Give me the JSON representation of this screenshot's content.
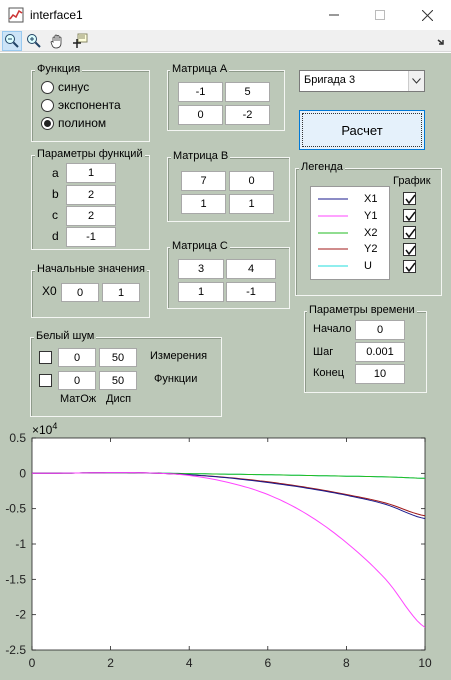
{
  "window": {
    "title": "interface1"
  },
  "toolbar": {
    "icons": [
      "zoom-out-icon",
      "zoom-in-icon",
      "pan-icon",
      "data-cursor-icon"
    ]
  },
  "function_panel": {
    "title": "Функция",
    "options": [
      {
        "label": "синус",
        "selected": false
      },
      {
        "label": "экспонента",
        "selected": false
      },
      {
        "label": "полином",
        "selected": true
      }
    ]
  },
  "params_panel": {
    "title": "Параметры функций",
    "rows": [
      {
        "label": "a",
        "value": "1"
      },
      {
        "label": "b",
        "value": "2"
      },
      {
        "label": "c",
        "value": "2"
      },
      {
        "label": "d",
        "value": "-1"
      }
    ]
  },
  "initial_panel": {
    "title": "Начальные значения",
    "label": "X0",
    "values": [
      "0",
      "1"
    ]
  },
  "matrix_a": {
    "title": "Матрица А",
    "values": [
      "-1",
      "5",
      "0",
      "-2"
    ]
  },
  "matrix_b": {
    "title": "Матрица B",
    "values": [
      "7",
      "0",
      "1",
      "1"
    ]
  },
  "matrix_c": {
    "title": "Матрица C",
    "values": [
      "3",
      "4",
      "1",
      "-1"
    ]
  },
  "brigade": {
    "selected": "Бригада 3"
  },
  "calc_button": {
    "label": "Расчет"
  },
  "legend_panel": {
    "title": "Легенда",
    "plot_header": "График",
    "items": [
      {
        "name": "X1",
        "color": "#1a1a8c",
        "checked": true
      },
      {
        "name": "Y1",
        "color": "#ff44ff",
        "checked": true
      },
      {
        "name": "X2",
        "color": "#22bb22",
        "checked": true
      },
      {
        "name": "Y2",
        "color": "#a01818",
        "checked": true
      },
      {
        "name": "U",
        "color": "#22dddd",
        "checked": true
      }
    ]
  },
  "noise_panel": {
    "title": "Белый шум",
    "rows": [
      {
        "checked": false,
        "mean": "0",
        "disp": "50",
        "label": "Измерения"
      },
      {
        "checked": false,
        "mean": "0",
        "disp": "50",
        "label": "Функции"
      }
    ],
    "mean_label": "МатОж",
    "disp_label": "Дисп"
  },
  "time_panel": {
    "title": "Параметры времени",
    "rows": [
      {
        "label": "Начало",
        "value": "0"
      },
      {
        "label": "Шаг",
        "value": "0.001"
      },
      {
        "label": "Конец",
        "value": "10"
      }
    ]
  },
  "chart_data": {
    "type": "line",
    "exponent_label": "×10",
    "exponent_power": "4",
    "xlim": [
      0,
      10
    ],
    "ylim": [
      -2.5,
      0.5
    ],
    "x_ticks": [
      "0",
      "2",
      "4",
      "6",
      "8",
      "10"
    ],
    "y_ticks": [
      "0.5",
      "0",
      "-0.5",
      "-1",
      "-1.5",
      "-2",
      "-2.5"
    ],
    "x": [
      0,
      1,
      2,
      3,
      4,
      5,
      6,
      7,
      8,
      9,
      10
    ],
    "series": [
      {
        "color": "#22dddd",
        "values": [
          0,
          0.004,
          0.008,
          0.004,
          -0.004,
          -0.012,
          -0.02,
          -0.03,
          -0.04,
          -0.05,
          -0.07
        ]
      },
      {
        "color": "#22bb22",
        "values": [
          0,
          0.004,
          0.008,
          0.004,
          -0.004,
          -0.012,
          -0.02,
          -0.03,
          -0.04,
          -0.05,
          -0.07
        ]
      },
      {
        "color": "#a01818",
        "values": [
          0,
          0.004,
          0.01,
          0.005,
          -0.02,
          -0.06,
          -0.12,
          -0.2,
          -0.3,
          -0.42,
          -0.6
        ]
      },
      {
        "color": "#1a1a8c",
        "values": [
          0,
          0.004,
          0.01,
          0.005,
          -0.02,
          -0.065,
          -0.13,
          -0.21,
          -0.31,
          -0.44,
          -0.64
        ]
      },
      {
        "color": "#ff44ff",
        "values": [
          0,
          0.004,
          0.01,
          0.005,
          -0.03,
          -0.13,
          -0.3,
          -0.58,
          -0.98,
          -1.5,
          -2.18
        ]
      }
    ]
  }
}
